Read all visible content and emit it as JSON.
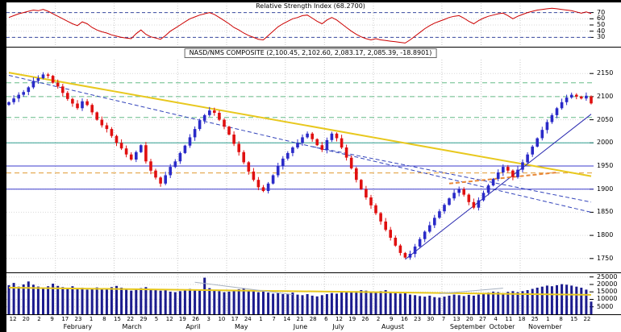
{
  "window": {
    "background": "#ffffff",
    "frame_color": "#000000",
    "grid_color": "#d9d9d9",
    "vgrid_color": "#c9c9c9"
  },
  "xaxis": {
    "week_labels": [
      "12",
      "20",
      "2",
      "9",
      "17",
      "23",
      "1",
      "8",
      "15",
      "22",
      "29",
      "5",
      "12",
      "19",
      "26",
      "3",
      "10",
      "17",
      "24",
      "1",
      "7",
      "14",
      "21",
      "28",
      "6",
      "12",
      "19",
      "26",
      "2",
      "9",
      "16",
      "23",
      "30",
      "7",
      "13",
      "20",
      "27",
      "4",
      "11",
      "18",
      "25",
      "1",
      "8",
      "15",
      "22"
    ],
    "months": [
      {
        "label": "February",
        "index": 10
      },
      {
        "label": "March",
        "index": 22
      },
      {
        "label": "April",
        "index": 35
      },
      {
        "label": "May",
        "index": 45
      },
      {
        "label": "June",
        "index": 57
      },
      {
        "label": "July",
        "index": 65
      },
      {
        "label": "August",
        "index": 75
      },
      {
        "label": "September",
        "index": 89
      },
      {
        "label": "October",
        "index": 97
      },
      {
        "label": "November",
        "index": 105
      }
    ]
  },
  "chart_data": [
    {
      "type": "line",
      "title": "Relative Strength Index (68.2700)",
      "yticks": [
        70,
        60,
        50,
        40,
        30
      ],
      "ylim": [
        15,
        85
      ],
      "guides": [
        70,
        30
      ],
      "guide_color": "#3a4aa0",
      "series": [
        {
          "name": "RSI",
          "color": "#cc0000",
          "values": [
            62,
            65,
            68,
            70,
            72,
            74,
            73,
            75,
            72,
            68,
            64,
            60,
            56,
            52,
            49,
            55,
            52,
            46,
            42,
            39,
            37,
            34,
            32,
            30,
            29,
            28,
            36,
            42,
            35,
            31,
            29,
            27,
            33,
            40,
            45,
            50,
            55,
            60,
            63,
            66,
            68,
            70,
            67,
            62,
            57,
            52,
            46,
            42,
            37,
            33,
            30,
            27,
            26,
            33,
            40,
            47,
            52,
            56,
            60,
            62,
            65,
            66,
            61,
            56,
            52,
            58,
            62,
            58,
            52,
            46,
            40,
            35,
            31,
            28,
            26,
            28,
            26,
            25,
            24,
            23,
            22,
            21,
            26,
            32,
            38,
            44,
            49,
            53,
            56,
            59,
            62,
            64,
            65,
            61,
            56,
            52,
            57,
            61,
            64,
            66,
            68,
            69,
            65,
            60,
            64,
            67,
            70,
            72,
            74,
            75,
            76,
            77,
            76,
            75,
            74,
            73,
            71,
            69,
            71,
            68.27
          ]
        }
      ]
    },
    {
      "type": "candlestick",
      "title": "NASD/NMS COMPOSITE (2,100.45, 2,102.60, 2,083.17, 2,085.39, -18.8901)",
      "yticks": [
        2150,
        2100,
        2050,
        2000,
        1950,
        1900,
        1850,
        1800,
        1750
      ],
      "ylim": [
        1720,
        2180
      ],
      "up_color": "#2a2ac8",
      "down_color": "#e01010",
      "closes": [
        2088,
        2096,
        2104,
        2110,
        2120,
        2134,
        2140,
        2148,
        2145,
        2130,
        2122,
        2108,
        2095,
        2085,
        2075,
        2090,
        2082,
        2066,
        2050,
        2038,
        2030,
        2015,
        2000,
        1988,
        1975,
        1964,
        1980,
        1995,
        1960,
        1940,
        1925,
        1912,
        1930,
        1948,
        1960,
        1978,
        1994,
        2012,
        2030,
        2048,
        2060,
        2070,
        2065,
        2050,
        2035,
        2018,
        1998,
        1980,
        1958,
        1938,
        1920,
        1904,
        1896,
        1912,
        1930,
        1950,
        1966,
        1978,
        1990,
        2000,
        2012,
        2020,
        2008,
        1995,
        1985,
        2006,
        2020,
        2010,
        1990,
        1968,
        1945,
        1920,
        1900,
        1882,
        1865,
        1848,
        1830,
        1812,
        1795,
        1778,
        1762,
        1752,
        1760,
        1776,
        1792,
        1808,
        1822,
        1838,
        1852,
        1866,
        1880,
        1892,
        1900,
        1888,
        1872,
        1860,
        1876,
        1892,
        1908,
        1922,
        1936,
        1948,
        1940,
        1926,
        1942,
        1958,
        1975,
        1992,
        2010,
        2028,
        2045,
        2060,
        2075,
        2088,
        2098,
        2104,
        2100,
        2096,
        2102,
        2085.39
      ],
      "last_ohlc": [
        2100.45,
        2102.6,
        2083.17,
        2085.39
      ],
      "hlines": [
        {
          "value": 2130,
          "color": "#66bb88",
          "style": "dashed"
        },
        {
          "value": 2100,
          "color": "#66bb88",
          "style": "dashed"
        },
        {
          "value": 2055,
          "color": "#66bb88",
          "style": "dashed"
        },
        {
          "value": 2000,
          "color": "#2f9e8f",
          "style": "solid"
        },
        {
          "value": 1950,
          "color": "#3b3bcc",
          "style": "solid"
        },
        {
          "value": 1935,
          "color": "#e09a30",
          "style": "dashed"
        },
        {
          "value": 1900,
          "color": "#3b3bcc",
          "style": "solid"
        }
      ],
      "trendlines": [
        {
          "color": "#e8c81e",
          "width": 2,
          "style": "solid",
          "from": [
            0,
            2152
          ],
          "to": [
            119,
            1928
          ]
        },
        {
          "color": "#3344bb",
          "width": 1,
          "style": "dashed",
          "from": [
            0,
            2146
          ],
          "to": [
            119,
            1850
          ]
        },
        {
          "color": "#3344bb",
          "width": 1,
          "style": "dashed",
          "from": [
            62,
            1992
          ],
          "to": [
            119,
            1872
          ]
        },
        {
          "color": "#2a2ab0",
          "width": 1,
          "style": "solid",
          "from": [
            81,
            1748
          ],
          "to": [
            119,
            2062
          ]
        },
        {
          "color": "#e8883a",
          "width": 2,
          "style": "dashed",
          "from": [
            90,
            1912
          ],
          "to": [
            112,
            1936
          ]
        }
      ]
    },
    {
      "type": "bar",
      "title": "Volume",
      "yticks": [
        25000,
        20000,
        15000,
        10000,
        5000
      ],
      "ylim": [
        0,
        27000
      ],
      "color": "#1c1c8e",
      "values": [
        19500,
        21000,
        18500,
        20000,
        22000,
        19800,
        18600,
        17900,
        18800,
        20500,
        19000,
        18200,
        17500,
        18800,
        16900,
        17800,
        16500,
        17200,
        18000,
        16800,
        17500,
        18200,
        19000,
        17800,
        16500,
        15900,
        16800,
        17500,
        18200,
        17000,
        16200,
        15800,
        16500,
        15200,
        14800,
        15500,
        16200,
        17000,
        16500,
        15800,
        24500,
        17500,
        16200,
        15500,
        14800,
        15200,
        16000,
        16800,
        17500,
        16200,
        15500,
        14800,
        15500,
        14500,
        13800,
        14200,
        13500,
        13800,
        14500,
        13200,
        12800,
        13500,
        12500,
        12000,
        12800,
        13500,
        14200,
        13800,
        14500,
        15200,
        14800,
        15500,
        16200,
        15800,
        15200,
        14800,
        15500,
        16200,
        15000,
        14200,
        13800,
        14500,
        13200,
        12800,
        12200,
        11800,
        12500,
        11500,
        11200,
        11800,
        12500,
        13200,
        12800,
        12200,
        13000,
        12500,
        13200,
        13800,
        14500,
        15200,
        14800,
        14200,
        15000,
        15500,
        14800,
        15500,
        16200,
        17000,
        17800,
        18500,
        19200,
        18800,
        19500,
        20200,
        19800,
        19200,
        18500,
        17800,
        16500,
        8500
      ],
      "trendlines": [
        {
          "color": "#e8c81e",
          "width": 2,
          "style": "solid",
          "from": [
            0,
            17800
          ],
          "to": [
            119,
            13000
          ]
        },
        {
          "color": "#a8b2c0",
          "width": 1,
          "style": "solid",
          "from": [
            38,
            21500
          ],
          "to": [
            58,
            13200
          ]
        },
        {
          "color": "#a8b2c0",
          "width": 1,
          "style": "solid",
          "from": [
            88,
            13800
          ],
          "to": [
            101,
            17500
          ]
        }
      ]
    }
  ]
}
